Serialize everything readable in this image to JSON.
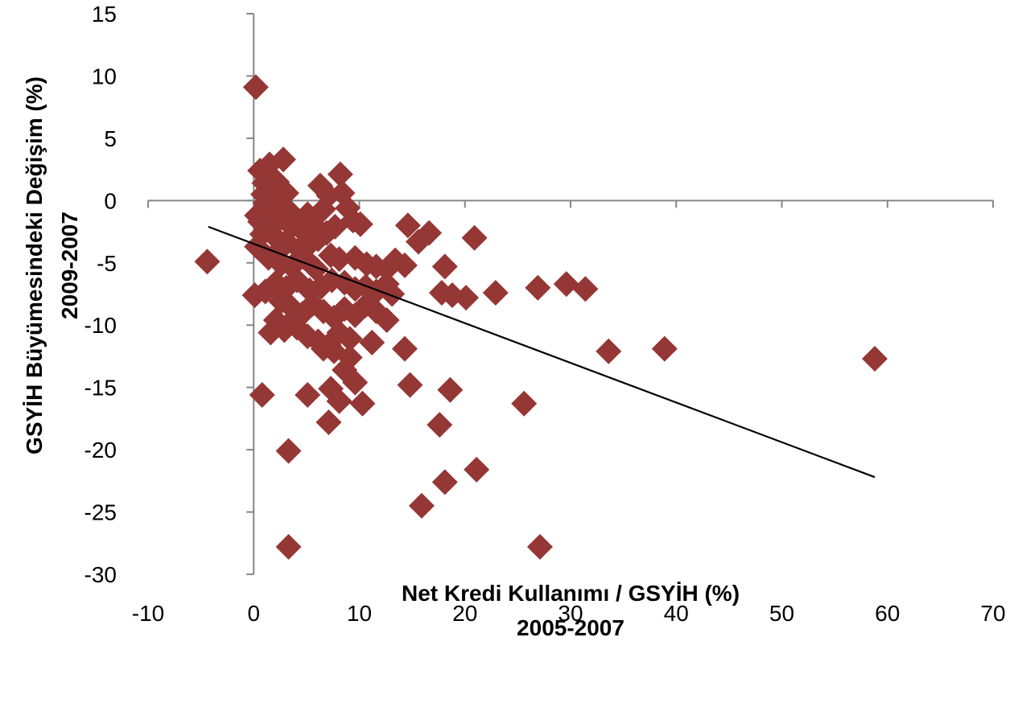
{
  "chart_data": {
    "type": "scatter",
    "title": "",
    "xlabel_line1": "Net Kredi Kullanımı / GSYİH (%)",
    "xlabel_line2": "2005-2007",
    "ylabel_line1": "GSYİH Büyümesindeki Değişim (%)",
    "ylabel_line2": "2009-2007",
    "xlim": [
      -10,
      70
    ],
    "ylim": [
      -30,
      15
    ],
    "x_ticks": [
      -10,
      0,
      10,
      20,
      30,
      40,
      50,
      60,
      70
    ],
    "y_ticks": [
      15,
      10,
      5,
      0,
      -5,
      -10,
      -15,
      -20,
      -25,
      -30
    ],
    "x_tick_labels": [
      "-10",
      "0",
      "10",
      "20",
      "30",
      "40",
      "50",
      "60",
      "70"
    ],
    "y_tick_labels": [
      "15",
      "10",
      "5",
      "0",
      "-5",
      "-10",
      "-15",
      "-20",
      "-25",
      "-30"
    ],
    "grid": false,
    "legend": "none",
    "marker": "diamond",
    "marker_color": "#953735",
    "axis_color": "#868686",
    "trendline_color": "#000000",
    "trendline": [
      [
        -4.3,
        -2.1
      ],
      [
        58.8,
        -22.2
      ]
    ],
    "points": [
      [
        0.2,
        9.1
      ],
      [
        -4.4,
        -4.9
      ],
      [
        0.6,
        2.4
      ],
      [
        1.5,
        2.9
      ],
      [
        2.8,
        3.3
      ],
      [
        1.0,
        1.4
      ],
      [
        2.2,
        1.5
      ],
      [
        1.8,
        0.9
      ],
      [
        0.9,
        0.5
      ],
      [
        3.1,
        0.6
      ],
      [
        1.1,
        -0.2
      ],
      [
        0.3,
        -1.2
      ],
      [
        0.6,
        -1.7
      ],
      [
        1.2,
        -1.0
      ],
      [
        2.0,
        -0.5
      ],
      [
        2.6,
        -1.2
      ],
      [
        3.3,
        -0.8
      ],
      [
        1.7,
        -2.1
      ],
      [
        0.8,
        -2.7
      ],
      [
        2.1,
        -3.0
      ],
      [
        3.6,
        -2.1
      ],
      [
        4.0,
        -1.6
      ],
      [
        4.6,
        -2.4
      ],
      [
        5.1,
        -1.1
      ],
      [
        5.6,
        -1.9
      ],
      [
        6.3,
        1.2
      ],
      [
        7.1,
        0.4
      ],
      [
        6.6,
        -0.7
      ],
      [
        8.2,
        2.1
      ],
      [
        8.4,
        0.6
      ],
      [
        8.9,
        -0.6
      ],
      [
        9.4,
        -1.6
      ],
      [
        10.1,
        -1.9
      ],
      [
        7.7,
        -2.1
      ],
      [
        6.9,
        -2.6
      ],
      [
        6.1,
        -3.1
      ],
      [
        5.3,
        -3.5
      ],
      [
        4.3,
        -3.9
      ],
      [
        3.1,
        -3.3
      ],
      [
        2.3,
        -4.1
      ],
      [
        0.3,
        -3.7
      ],
      [
        1.4,
        -4.6
      ],
      [
        2.6,
        -5.1
      ],
      [
        3.6,
        -5.3
      ],
      [
        4.8,
        -4.6
      ],
      [
        5.9,
        -5.5
      ],
      [
        7.3,
        -4.4
      ],
      [
        8.1,
        -4.7
      ],
      [
        9.6,
        -4.6
      ],
      [
        10.7,
        -5.1
      ],
      [
        11.6,
        -5.3
      ],
      [
        12.6,
        -5.5
      ],
      [
        13.4,
        -4.8
      ],
      [
        14.3,
        -5.2
      ],
      [
        14.6,
        -2.0
      ],
      [
        15.6,
        -3.3
      ],
      [
        16.6,
        -2.6
      ],
      [
        20.9,
        -3.0
      ],
      [
        18.1,
        -5.3
      ],
      [
        17.8,
        -7.4
      ],
      [
        18.8,
        -7.6
      ],
      [
        20.1,
        -7.8
      ],
      [
        22.9,
        -7.4
      ],
      [
        26.9,
        -7.0
      ],
      [
        29.6,
        -6.7
      ],
      [
        31.4,
        -7.1
      ],
      [
        0.1,
        -7.6
      ],
      [
        1.1,
        -7.3
      ],
      [
        2.1,
        -6.6
      ],
      [
        3.1,
        -7.0
      ],
      [
        4.1,
        -6.4
      ],
      [
        5.3,
        -7.2
      ],
      [
        6.4,
        -6.9
      ],
      [
        7.4,
        -6.4
      ],
      [
        8.6,
        -6.6
      ],
      [
        9.6,
        -7.1
      ],
      [
        10.6,
        -6.9
      ],
      [
        11.6,
        -7.3
      ],
      [
        12.6,
        -6.7
      ],
      [
        13.1,
        -7.5
      ],
      [
        2.6,
        -8.1
      ],
      [
        3.6,
        -8.6
      ],
      [
        4.6,
        -9.1
      ],
      [
        5.6,
        -8.3
      ],
      [
        6.6,
        -8.9
      ],
      [
        7.6,
        -9.4
      ],
      [
        8.6,
        -8.7
      ],
      [
        9.6,
        -9.2
      ],
      [
        10.6,
        -8.4
      ],
      [
        11.6,
        -8.9
      ],
      [
        12.6,
        -9.6
      ],
      [
        2.1,
        -9.6
      ],
      [
        3.1,
        -10.1
      ],
      [
        1.6,
        -10.6
      ],
      [
        2.9,
        -10.4
      ],
      [
        4.1,
        -10.2
      ],
      [
        5.1,
        -10.9
      ],
      [
        6.1,
        -11.3
      ],
      [
        7.1,
        -11.6
      ],
      [
        8.1,
        -10.6
      ],
      [
        9.1,
        -11.1
      ],
      [
        6.6,
        -11.9
      ],
      [
        7.6,
        -12.1
      ],
      [
        9.1,
        -12.6
      ],
      [
        11.2,
        -11.4
      ],
      [
        14.3,
        -11.9
      ],
      [
        8.6,
        -13.6
      ],
      [
        9.6,
        -14.6
      ],
      [
        10.3,
        -16.3
      ],
      [
        8.1,
        -16.1
      ],
      [
        7.3,
        -15.1
      ],
      [
        7.1,
        -17.8
      ],
      [
        5.1,
        -15.6
      ],
      [
        0.8,
        -15.6
      ],
      [
        3.3,
        -20.1
      ],
      [
        14.8,
        -14.8
      ],
      [
        18.6,
        -15.2
      ],
      [
        17.6,
        -18.0
      ],
      [
        18.1,
        -22.6
      ],
      [
        21.1,
        -21.6
      ],
      [
        15.9,
        -24.5
      ],
      [
        25.6,
        -16.3
      ],
      [
        3.3,
        -27.8
      ],
      [
        27.1,
        -27.8
      ],
      [
        33.6,
        -12.1
      ],
      [
        38.9,
        -11.9
      ],
      [
        58.8,
        -12.7
      ]
    ]
  }
}
